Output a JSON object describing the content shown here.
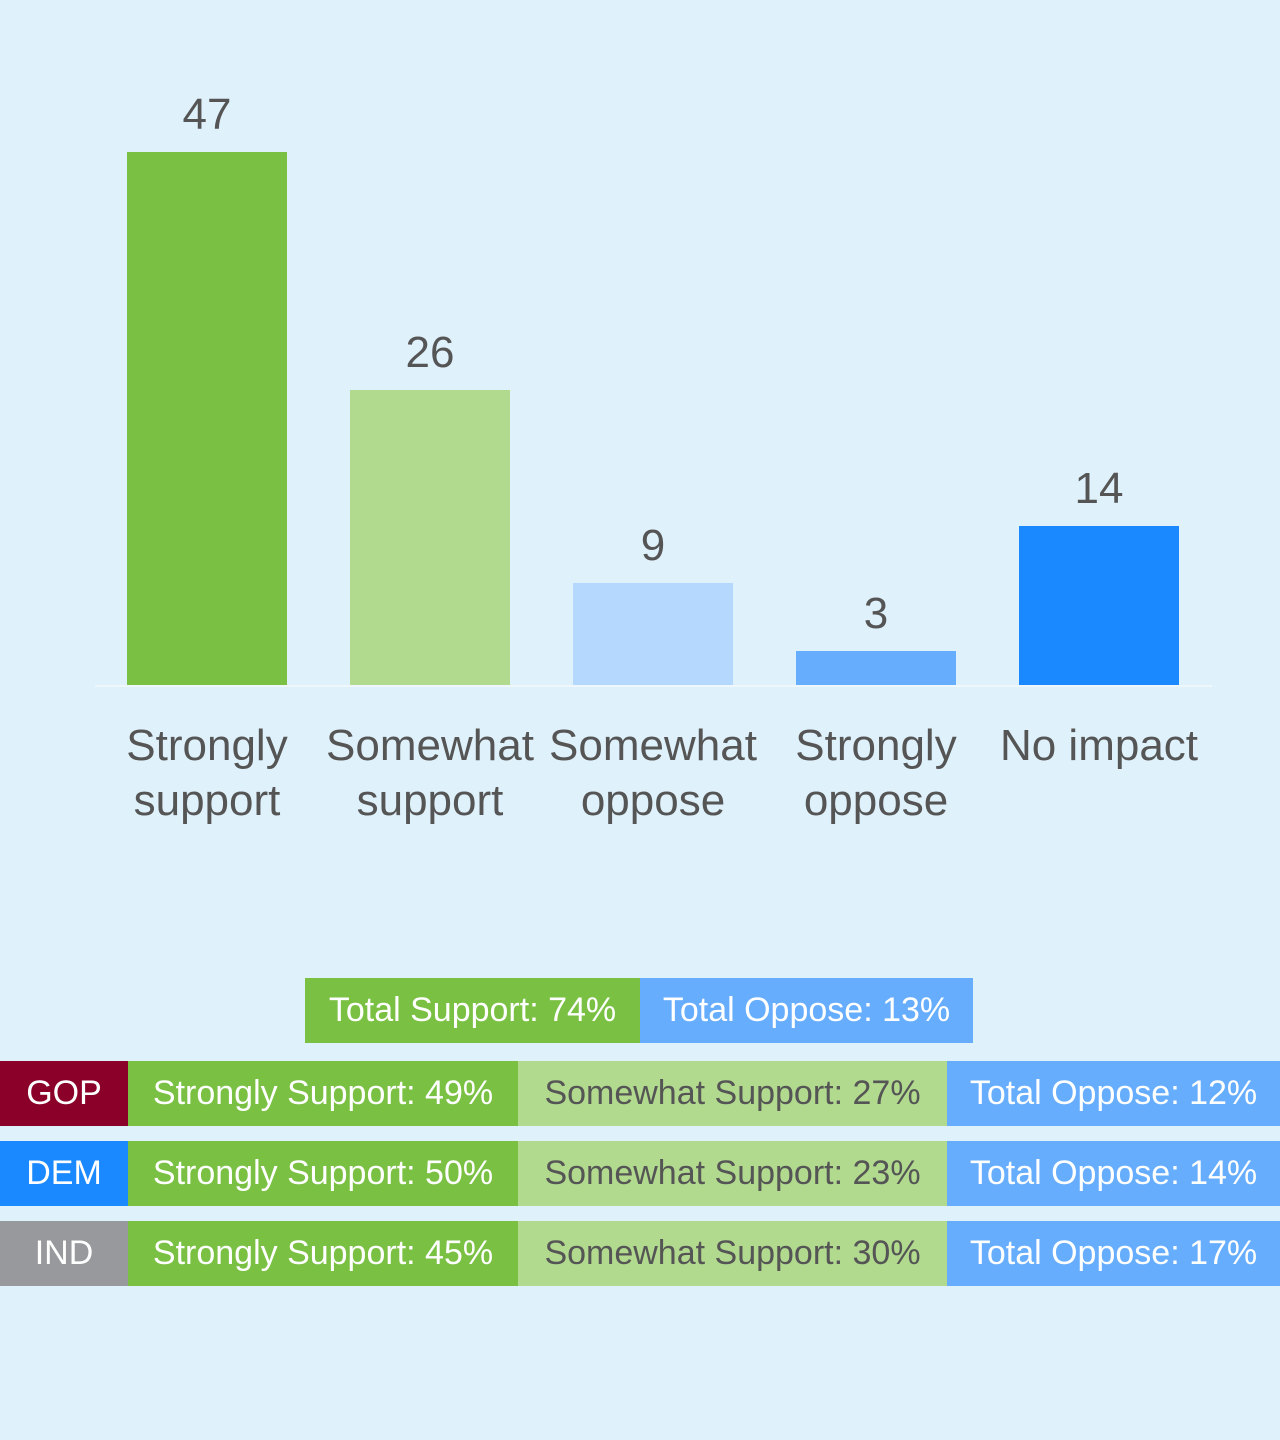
{
  "chart_data": {
    "type": "bar",
    "categories": [
      "Strongly support",
      "Somewhat support",
      "Somewhat oppose",
      "Strongly oppose",
      "No impact"
    ],
    "values": [
      47,
      26,
      9,
      3,
      14
    ],
    "colors": [
      "#7ac143",
      "#b1da8f",
      "#b5d8fe",
      "#66adfe",
      "#1a88fe"
    ]
  },
  "summary": {
    "totals": [
      "Total Support: 74%",
      "Total Oppose: 13%"
    ],
    "rows": [
      {
        "label": "GOP",
        "cells": [
          "Strongly Support: 49%",
          "Somewhat Support: 27%",
          "Total Oppose: 12%"
        ]
      },
      {
        "label": "DEM",
        "cells": [
          "Strongly Support: 50%",
          "Somewhat Support: 23%",
          "Total Oppose: 14%"
        ]
      },
      {
        "label": "IND",
        "cells": [
          "Strongly Support: 45%",
          "Somewhat Support: 30%",
          "Total Oppose: 17%"
        ]
      }
    ]
  }
}
